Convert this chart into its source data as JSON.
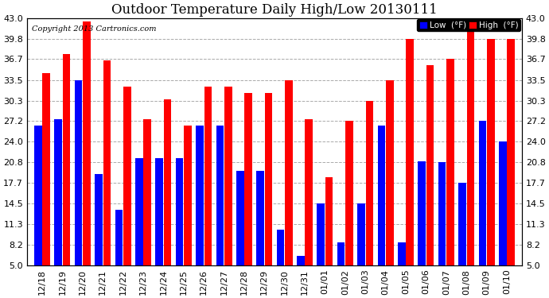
{
  "title": "Outdoor Temperature Daily High/Low 20130111",
  "copyright": "Copyright 2013 Cartronics.com",
  "categories": [
    "12/18",
    "12/19",
    "12/20",
    "12/21",
    "12/22",
    "12/23",
    "12/24",
    "12/25",
    "12/26",
    "12/27",
    "12/28",
    "12/29",
    "12/30",
    "12/31",
    "01/01",
    "01/02",
    "01/03",
    "01/04",
    "01/05",
    "01/06",
    "01/07",
    "01/08",
    "01/09",
    "01/10"
  ],
  "low_values": [
    26.5,
    27.5,
    33.5,
    19.0,
    13.5,
    21.5,
    21.5,
    21.5,
    26.5,
    26.5,
    19.5,
    19.5,
    10.5,
    6.5,
    14.5,
    8.5,
    14.5,
    26.5,
    8.5,
    21.0,
    20.8,
    17.7,
    27.2,
    24.0
  ],
  "high_values": [
    34.5,
    37.5,
    42.5,
    36.5,
    32.5,
    27.5,
    30.5,
    26.5,
    32.5,
    32.5,
    31.5,
    31.5,
    33.5,
    27.5,
    18.5,
    27.2,
    30.3,
    33.5,
    39.8,
    35.8,
    36.7,
    42.5,
    39.8,
    39.8
  ],
  "ylim": [
    5.0,
    43.0
  ],
  "yticks": [
    5.0,
    8.2,
    11.3,
    14.5,
    17.7,
    20.8,
    24.0,
    27.2,
    30.3,
    33.5,
    36.7,
    39.8,
    43.0
  ],
  "bar_color_low": "#0000ff",
  "bar_color_high": "#ff0000",
  "background_color": "#ffffff",
  "grid_color": "#aaaaaa",
  "title_fontsize": 12,
  "copyright_fontsize": 7,
  "tick_fontsize": 8,
  "legend_label_low": "Low  (°F)",
  "legend_label_high": "High  (°F)"
}
